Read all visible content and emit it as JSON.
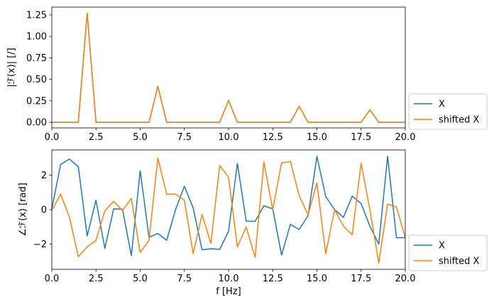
{
  "colors": {
    "series_1": "#1f77b4",
    "series_2": "#ff7f0e",
    "axes": "#000000",
    "legend_frame": "#cccccc"
  },
  "chart_data": [
    {
      "type": "line",
      "title": "",
      "xlabel": "",
      "ylabel": "|ℱ(x)| [/]",
      "xlim": [
        0,
        20
      ],
      "ylim": [
        -0.065,
        1.34
      ],
      "xticks": [
        0.0,
        2.5,
        5.0,
        7.5,
        10.0,
        12.5,
        15.0,
        17.5,
        20.0
      ],
      "xtick_labels": [
        "0.0",
        "2.5",
        "5.0",
        "7.5",
        "10.0",
        "12.5",
        "15.0",
        "17.5",
        "20.0"
      ],
      "yticks": [
        0.0,
        0.25,
        0.5,
        0.75,
        1.0,
        1.25
      ],
      "ytick_labels": [
        "0.00",
        "0.25",
        "0.50",
        "0.75",
        "1.00",
        "1.25"
      ],
      "grid": false,
      "legend": "outside-right-bottom",
      "x": [
        0.0,
        0.5,
        1.0,
        1.5,
        2.0,
        2.5,
        3.0,
        3.5,
        4.0,
        4.5,
        5.0,
        5.5,
        6.0,
        6.5,
        7.0,
        7.5,
        8.0,
        8.5,
        9.0,
        9.5,
        10.0,
        10.5,
        11.0,
        11.5,
        12.0,
        12.5,
        13.0,
        13.5,
        14.0,
        14.5,
        15.0,
        15.5,
        16.0,
        16.5,
        17.0,
        17.5,
        18.0,
        18.5,
        19.0,
        19.5,
        20.0
      ],
      "series": [
        {
          "name": "X",
          "values": [
            0,
            0,
            0,
            0,
            1.27,
            0,
            0,
            0,
            0,
            0,
            0,
            0,
            0.42,
            0,
            0,
            0,
            0,
            0,
            0,
            0,
            0.255,
            0,
            0,
            0,
            0,
            0,
            0,
            0,
            0.185,
            0,
            0,
            0,
            0,
            0,
            0,
            0,
            0.145,
            0,
            0,
            0,
            0
          ]
        },
        {
          "name": "shifted X",
          "values": [
            0,
            0,
            0,
            0,
            1.27,
            0,
            0,
            0,
            0,
            0,
            0,
            0,
            0.42,
            0,
            0,
            0,
            0,
            0,
            0,
            0,
            0.255,
            0,
            0,
            0,
            0,
            0,
            0,
            0,
            0.185,
            0,
            0,
            0,
            0,
            0,
            0,
            0,
            0.145,
            0,
            0,
            0,
            0
          ]
        }
      ]
    },
    {
      "type": "line",
      "title": "",
      "xlabel": "f [Hz]",
      "ylabel": "∠ℱ(x) [rad]",
      "xlim": [
        0,
        20
      ],
      "ylim": [
        -3.45,
        3.45
      ],
      "xticks": [
        0.0,
        2.5,
        5.0,
        7.5,
        10.0,
        12.5,
        15.0,
        17.5,
        20.0
      ],
      "xtick_labels": [
        "0.0",
        "2.5",
        "5.0",
        "7.5",
        "10.0",
        "12.5",
        "15.0",
        "17.5",
        "20.0"
      ],
      "yticks": [
        -2,
        0,
        2
      ],
      "ytick_labels": [
        "−2",
        "0",
        "2"
      ],
      "grid": false,
      "legend": "outside-right-bottom",
      "x": [
        0.0,
        0.5,
        1.0,
        1.5,
        2.0,
        2.5,
        3.0,
        3.5,
        4.0,
        4.5,
        5.0,
        5.5,
        6.0,
        6.5,
        7.0,
        7.5,
        8.0,
        8.5,
        9.0,
        9.5,
        10.0,
        10.5,
        11.0,
        11.5,
        12.0,
        12.5,
        13.0,
        13.5,
        14.0,
        14.5,
        15.0,
        15.5,
        16.0,
        16.5,
        17.0,
        17.5,
        18.0,
        18.5,
        19.0,
        19.5,
        20.0
      ],
      "series": [
        {
          "name": "X",
          "values": [
            0.05,
            2.62,
            2.92,
            2.48,
            -1.52,
            0.55,
            -2.24,
            0.05,
            0.02,
            -2.66,
            2.25,
            -1.6,
            -1.38,
            -1.77,
            0.0,
            1.35,
            0.1,
            -2.32,
            -2.26,
            -2.3,
            -1.25,
            2.67,
            -0.67,
            -0.68,
            0.22,
            0.05,
            -2.63,
            -0.85,
            -1.15,
            -0.35,
            3.08,
            0.75,
            0.0,
            -0.45,
            0.78,
            0.35,
            -0.95,
            -2.0,
            3.08,
            -1.62,
            -1.62
          ]
        },
        {
          "name": "shifted X",
          "values": [
            -0.05,
            0.9,
            -0.45,
            -2.72,
            -2.15,
            -1.78,
            -0.07,
            0.48,
            -0.05,
            0.65,
            -2.47,
            -1.78,
            2.98,
            0.9,
            0.9,
            0.55,
            -2.55,
            -0.28,
            -1.95,
            2.55,
            1.88,
            -2.15,
            -1.0,
            -2.75,
            2.75,
            0.0,
            2.7,
            2.78,
            0.8,
            -0.3,
            1.55,
            -2.55,
            0.0,
            -0.95,
            -1.45,
            2.68,
            0.0,
            -3.08,
            0.32,
            0.15,
            -1.62
          ]
        }
      ]
    }
  ]
}
